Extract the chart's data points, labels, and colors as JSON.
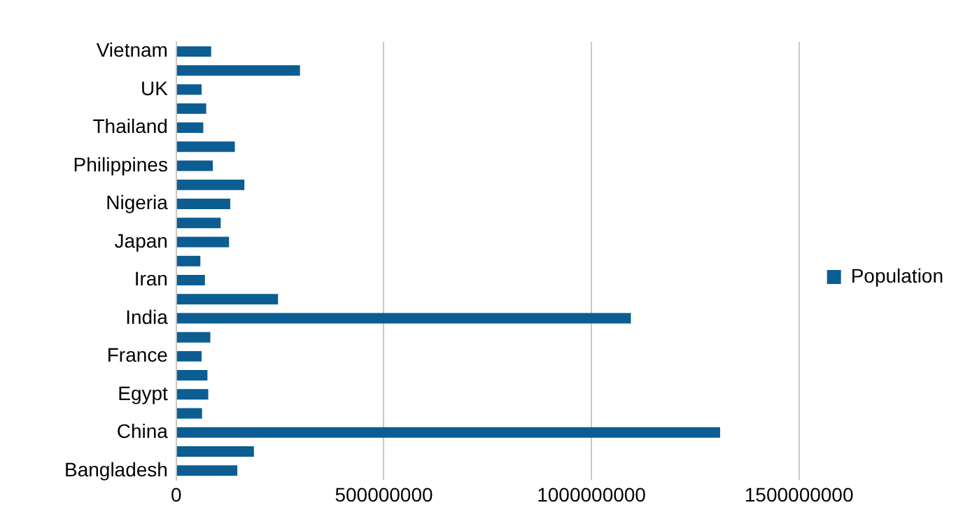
{
  "chart_data": {
    "type": "bar",
    "orientation": "horizontal",
    "categories": [
      "Vietnam",
      null,
      "UK",
      null,
      "Thailand",
      null,
      "Philippines",
      null,
      "Nigeria",
      null,
      "Japan",
      null,
      "Iran",
      null,
      "India",
      null,
      "France",
      null,
      "Egypt",
      null,
      "China",
      null,
      "Bangladesh"
    ],
    "series": [
      {
        "name": "Population",
        "color": "#0b5d92",
        "values": [
          84000000,
          298000000,
          61000000,
          72000000,
          65000000,
          141000000,
          88000000,
          164000000,
          130000000,
          107000000,
          127000000,
          58000000,
          69000000,
          245000000,
          1095000000,
          82000000,
          61000000,
          75000000,
          77000000,
          62000000,
          1310000000,
          187000000,
          147000000
        ]
      }
    ],
    "xlim": [
      0,
      1500000000
    ],
    "xticks": [
      0,
      500000000,
      1000000000,
      1500000000
    ],
    "grid": "x",
    "legend": "right"
  }
}
